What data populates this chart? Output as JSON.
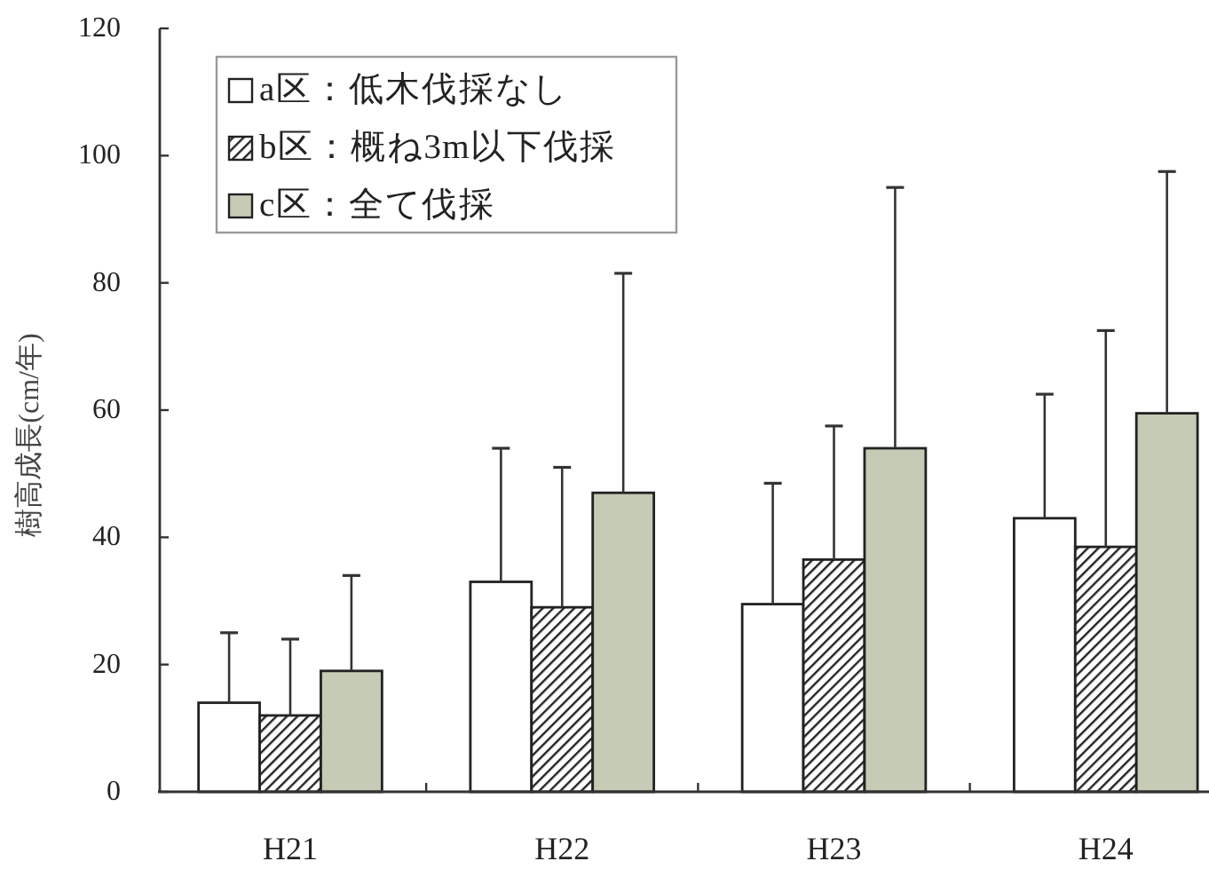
{
  "chart_data": {
    "type": "bar",
    "categories": [
      "H21",
      "H22",
      "H23",
      "H24"
    ],
    "ylabel": "樹高成長(cm/年)",
    "series": [
      {
        "name": "a区：低木伐採なし",
        "color": "#ffffff",
        "values": [
          14,
          33,
          29.5,
          43
        ],
        "errors": [
          [
            14,
            25
          ],
          [
            33,
            54
          ],
          [
            29.5,
            48.5
          ],
          [
            43,
            62.5
          ]
        ]
      },
      {
        "name": "b区：概ね3m以下伐採",
        "color": "#222222",
        "values": [
          12,
          29,
          36.5,
          38.5
        ],
        "errors": [
          [
            12,
            24
          ],
          [
            29,
            51
          ],
          [
            36.5,
            57.5
          ],
          [
            38.5,
            72.5
          ]
        ]
      },
      {
        "name": "c区：全て伐採",
        "color": "#c5cbb4",
        "values": [
          19,
          47,
          54,
          59.5
        ],
        "errors": [
          [
            19,
            34
          ],
          [
            47,
            81.5
          ],
          [
            54,
            95
          ],
          [
            59.5,
            97.5
          ]
        ]
      }
    ],
    "ylim": [
      0,
      120
    ],
    "yticks": [
      0,
      20,
      40,
      60,
      80,
      100,
      120
    ],
    "legend": "top left"
  }
}
